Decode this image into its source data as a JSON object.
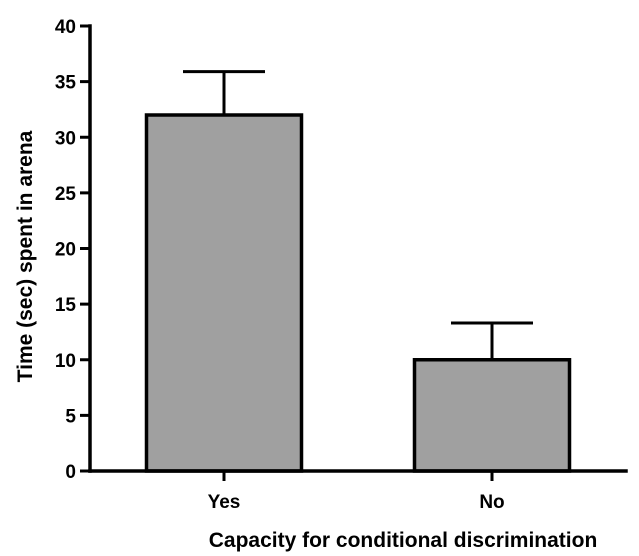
{
  "chart_data": {
    "type": "bar",
    "title": "",
    "categories": [
      "Yes",
      "No"
    ],
    "values": [
      32,
      10
    ],
    "errors": [
      3.9,
      3.3
    ],
    "xlabel": "Capacity for conditional discrimination",
    "ylabel": "Time (sec) spent in arena",
    "ylim": [
      0,
      40
    ],
    "yticks": [
      "0",
      "5",
      "10",
      "15",
      "20",
      "25",
      "30",
      "35",
      "40"
    ],
    "bar_color": "#a0a0a0",
    "grid": false,
    "legend": "none"
  }
}
